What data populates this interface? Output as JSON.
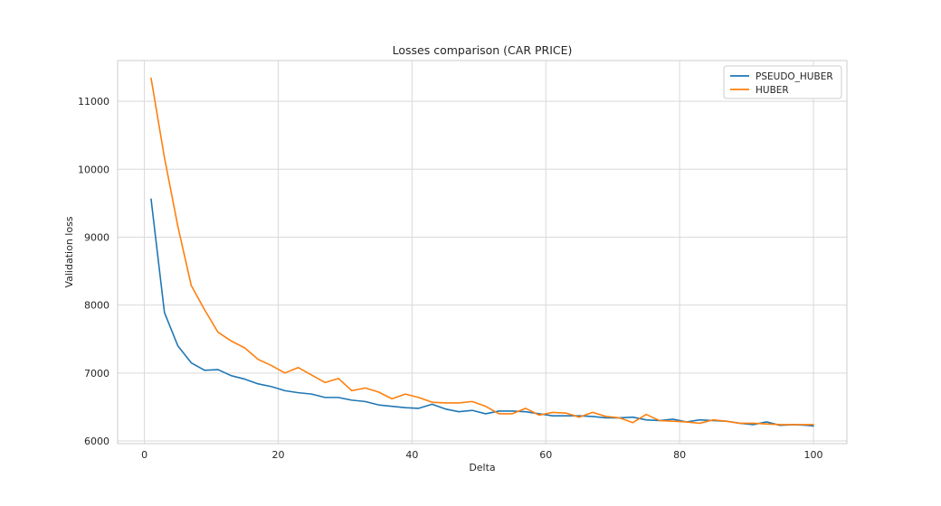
{
  "chart_data": {
    "type": "line",
    "title": "Losses comparison (CAR PRICE)",
    "xlabel": "Delta",
    "ylabel": "Validation loss",
    "xlim": [
      -4,
      105
    ],
    "ylim": [
      5960,
      11600
    ],
    "xticks": [
      0,
      20,
      40,
      60,
      80,
      100
    ],
    "yticks": [
      6000,
      7000,
      8000,
      9000,
      10000,
      11000
    ],
    "grid": true,
    "legend_position": "top-right",
    "x": [
      1,
      3,
      5,
      7,
      9,
      11,
      13,
      15,
      17,
      19,
      21,
      23,
      25,
      27,
      29,
      31,
      33,
      35,
      37,
      39,
      41,
      43,
      45,
      47,
      49,
      51,
      53,
      55,
      57,
      59,
      61,
      63,
      65,
      67,
      69,
      71,
      73,
      75,
      77,
      79,
      81,
      83,
      85,
      87,
      89,
      91,
      93,
      95,
      97,
      99,
      100
    ],
    "series": [
      {
        "name": "PSEUDO_HUBER",
        "color": "#1f77b4",
        "values": [
          9560,
          7890,
          7400,
          7150,
          7040,
          7050,
          6960,
          6910,
          6840,
          6800,
          6740,
          6710,
          6690,
          6640,
          6640,
          6600,
          6580,
          6530,
          6510,
          6490,
          6480,
          6540,
          6470,
          6430,
          6450,
          6400,
          6440,
          6440,
          6430,
          6400,
          6370,
          6370,
          6370,
          6360,
          6340,
          6340,
          6350,
          6310,
          6300,
          6320,
          6280,
          6310,
          6300,
          6290,
          6260,
          6240,
          6280,
          6230,
          6240,
          6230,
          6220
        ]
      },
      {
        "name": "HUBER",
        "color": "#ff7f0e",
        "values": [
          11340,
          10170,
          9160,
          8290,
          7930,
          7600,
          7470,
          7370,
          7200,
          7110,
          7000,
          7080,
          6970,
          6860,
          6920,
          6740,
          6780,
          6720,
          6620,
          6690,
          6640,
          6570,
          6560,
          6560,
          6580,
          6510,
          6400,
          6400,
          6480,
          6380,
          6420,
          6410,
          6350,
          6420,
          6360,
          6340,
          6270,
          6390,
          6300,
          6290,
          6280,
          6260,
          6310,
          6290,
          6260,
          6260,
          6250,
          6240,
          6240,
          6240,
          6240
        ]
      }
    ]
  }
}
